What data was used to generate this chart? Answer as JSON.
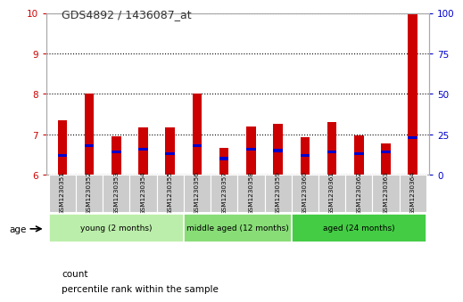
{
  "title": "GDS4892 / 1436087_at",
  "samples": [
    "GSM1230351",
    "GSM1230352",
    "GSM1230353",
    "GSM1230354",
    "GSM1230355",
    "GSM1230356",
    "GSM1230357",
    "GSM1230358",
    "GSM1230359",
    "GSM1230360",
    "GSM1230361",
    "GSM1230362",
    "GSM1230363",
    "GSM1230364"
  ],
  "count_values": [
    7.35,
    8.02,
    6.95,
    7.17,
    7.17,
    8.02,
    6.67,
    7.2,
    7.27,
    6.93,
    7.3,
    6.98,
    6.78,
    10.0
  ],
  "percentile_values": [
    12,
    18,
    14,
    16,
    13,
    18,
    10,
    16,
    15,
    12,
    14,
    13,
    14,
    23
  ],
  "ymin": 6,
  "ymax": 10,
  "yticks_left": [
    6,
    7,
    8,
    9,
    10
  ],
  "yticks_right": [
    0,
    25,
    50,
    75,
    100
  ],
  "bar_color": "#cc0000",
  "percentile_color": "#0000cc",
  "bar_width": 0.35,
  "groups": [
    {
      "label": "young (2 months)",
      "start": 0,
      "end": 5,
      "color": "#bbeeaa"
    },
    {
      "label": "middle aged (12 months)",
      "start": 5,
      "end": 9,
      "color": "#88dd77"
    },
    {
      "label": "aged (24 months)",
      "start": 9,
      "end": 14,
      "color": "#44cc44"
    }
  ],
  "age_label": "age",
  "legend_count_label": "count",
  "legend_percentile_label": "percentile rank within the sample",
  "title_color": "#333333",
  "left_axis_color": "#cc0000",
  "right_axis_color": "#0000cc",
  "bg_color": "#ffffff",
  "plot_bg_color": "#ffffff",
  "xticklabel_bg": "#cccccc",
  "grid_color": "#000000",
  "grid_style": "dotted"
}
